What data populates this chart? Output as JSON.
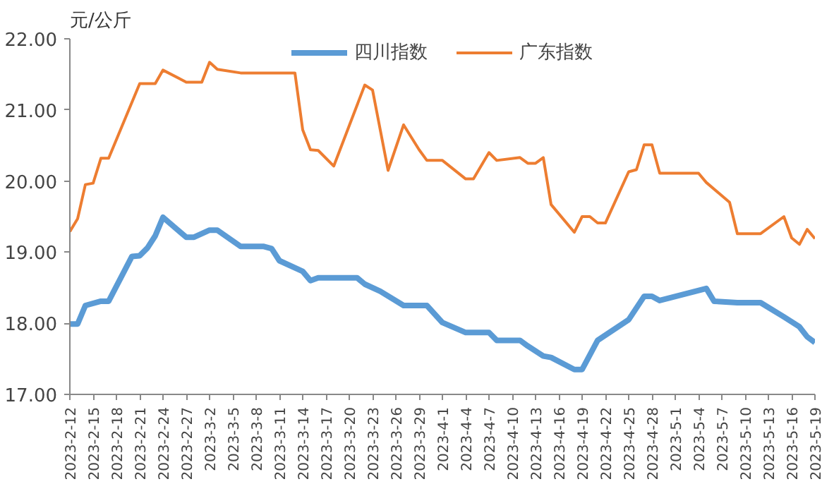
{
  "chart_data": {
    "type": "line",
    "ylabel": "元/公斤",
    "ylim": [
      17,
      22
    ],
    "yticks": [
      {
        "value": 17,
        "label": "17.00"
      },
      {
        "value": 18,
        "label": "18.00"
      },
      {
        "value": 19,
        "label": "19.00"
      },
      {
        "value": 20,
        "label": "20.00"
      },
      {
        "value": 21,
        "label": "21.00"
      },
      {
        "value": 22,
        "label": "22.00"
      }
    ],
    "xlim": [
      "2023-02-12",
      "2023-05-19"
    ],
    "xticks": [
      {
        "value": "2023-02-12",
        "label": "2023-2-12"
      },
      {
        "value": "2023-02-15",
        "label": "2023-2-15"
      },
      {
        "value": "2023-02-18",
        "label": "2023-2-18"
      },
      {
        "value": "2023-02-21",
        "label": "2023-2-21"
      },
      {
        "value": "2023-02-24",
        "label": "2023-2-24"
      },
      {
        "value": "2023-02-27",
        "label": "2023-2-27"
      },
      {
        "value": "2023-03-02",
        "label": "2023-3-2"
      },
      {
        "value": "2023-03-05",
        "label": "2023-3-5"
      },
      {
        "value": "2023-03-08",
        "label": "2023-3-8"
      },
      {
        "value": "2023-03-11",
        "label": "2023-3-11"
      },
      {
        "value": "2023-03-14",
        "label": "2023-3-14"
      },
      {
        "value": "2023-03-17",
        "label": "2023-3-17"
      },
      {
        "value": "2023-03-20",
        "label": "2023-3-20"
      },
      {
        "value": "2023-03-23",
        "label": "2023-3-23"
      },
      {
        "value": "2023-03-26",
        "label": "2023-3-26"
      },
      {
        "value": "2023-03-29",
        "label": "2023-3-29"
      },
      {
        "value": "2023-04-01",
        "label": "2023-4-1"
      },
      {
        "value": "2023-04-04",
        "label": "2023-4-4"
      },
      {
        "value": "2023-04-07",
        "label": "2023-4-7"
      },
      {
        "value": "2023-04-10",
        "label": "2023-4-10"
      },
      {
        "value": "2023-04-13",
        "label": "2023-4-13"
      },
      {
        "value": "2023-04-16",
        "label": "2023-4-16"
      },
      {
        "value": "2023-04-19",
        "label": "2023-4-19"
      },
      {
        "value": "2023-04-22",
        "label": "2023-4-22"
      },
      {
        "value": "2023-04-25",
        "label": "2023-4-25"
      },
      {
        "value": "2023-04-28",
        "label": "2023-4-28"
      },
      {
        "value": "2023-05-01",
        "label": "2023-5-1"
      },
      {
        "value": "2023-05-04",
        "label": "2023-5-4"
      },
      {
        "value": "2023-05-07",
        "label": "2023-5-7"
      },
      {
        "value": "2023-05-10",
        "label": "2023-5-10"
      },
      {
        "value": "2023-05-13",
        "label": "2023-5-13"
      },
      {
        "value": "2023-05-16",
        "label": "2023-5-16"
      },
      {
        "value": "2023-05-19",
        "label": "2023-5-19"
      }
    ],
    "grid": false,
    "legend": "top",
    "marker": "none",
    "line_style": "solid",
    "series": [
      {
        "name": "四川指数",
        "color": "#5b9bd5",
        "x": [
          "2023-02-12",
          "2023-02-13",
          "2023-02-14",
          "2023-02-16",
          "2023-02-17",
          "2023-02-20",
          "2023-02-21",
          "2023-02-22",
          "2023-02-23",
          "2023-02-24",
          "2023-02-27",
          "2023-02-28",
          "2023-03-02",
          "2023-03-03",
          "2023-03-06",
          "2023-03-09",
          "2023-03-10",
          "2023-03-11",
          "2023-03-14",
          "2023-03-15",
          "2023-03-16",
          "2023-03-21",
          "2023-03-22",
          "2023-03-24",
          "2023-03-27",
          "2023-03-30",
          "2023-04-01",
          "2023-04-04",
          "2023-04-07",
          "2023-04-08",
          "2023-04-11",
          "2023-04-12",
          "2023-04-14",
          "2023-04-15",
          "2023-04-18",
          "2023-04-19",
          "2023-04-21",
          "2023-04-25",
          "2023-04-27",
          "2023-04-28",
          "2023-04-29",
          "2023-05-05",
          "2023-05-06",
          "2023-05-09",
          "2023-05-12",
          "2023-05-15",
          "2023-05-17",
          "2023-05-18",
          "2023-05-19"
        ],
        "values": [
          17.99,
          17.99,
          18.25,
          18.31,
          18.31,
          18.94,
          18.95,
          19.06,
          19.23,
          19.49,
          19.21,
          19.21,
          19.31,
          19.31,
          19.08,
          19.08,
          19.05,
          18.88,
          18.73,
          18.6,
          18.64,
          18.64,
          18.55,
          18.45,
          18.25,
          18.25,
          18.01,
          17.87,
          17.87,
          17.76,
          17.76,
          17.68,
          17.54,
          17.52,
          17.35,
          17.35,
          17.76,
          18.05,
          18.38,
          18.38,
          18.32,
          18.49,
          18.31,
          18.29,
          18.29,
          18.09,
          17.95,
          17.81,
          17.73
        ]
      },
      {
        "name": "广东指数",
        "color": "#ed7d31",
        "x": [
          "2023-02-12",
          "2023-02-13",
          "2023-02-14",
          "2023-02-15",
          "2023-02-16",
          "2023-02-17",
          "2023-02-21",
          "2023-02-23",
          "2023-02-24",
          "2023-02-27",
          "2023-03-01",
          "2023-03-02",
          "2023-03-03",
          "2023-03-06",
          "2023-03-13",
          "2023-03-14",
          "2023-03-15",
          "2023-03-16",
          "2023-03-18",
          "2023-03-20",
          "2023-03-22",
          "2023-03-23",
          "2023-03-25",
          "2023-03-27",
          "2023-03-29",
          "2023-03-30",
          "2023-04-01",
          "2023-04-04",
          "2023-04-05",
          "2023-04-07",
          "2023-04-08",
          "2023-04-11",
          "2023-04-12",
          "2023-04-13",
          "2023-04-14",
          "2023-04-15",
          "2023-04-18",
          "2023-04-19",
          "2023-04-20",
          "2023-04-21",
          "2023-04-22",
          "2023-04-25",
          "2023-04-26",
          "2023-04-27",
          "2023-04-28",
          "2023-04-29",
          "2023-05-04",
          "2023-05-05",
          "2023-05-08",
          "2023-05-09",
          "2023-05-12",
          "2023-05-15",
          "2023-05-16",
          "2023-05-17",
          "2023-05-18",
          "2023-05-19"
        ],
        "values": [
          19.29,
          19.47,
          19.95,
          19.97,
          20.32,
          20.32,
          21.37,
          21.37,
          21.56,
          21.39,
          21.39,
          21.67,
          21.57,
          21.52,
          21.52,
          20.72,
          20.44,
          20.43,
          20.21,
          20.78,
          21.35,
          21.28,
          20.15,
          20.79,
          20.44,
          20.29,
          20.29,
          20.03,
          20.03,
          20.4,
          20.29,
          20.33,
          20.25,
          20.25,
          20.33,
          19.67,
          19.28,
          19.5,
          19.5,
          19.41,
          19.41,
          20.13,
          20.16,
          20.51,
          20.51,
          20.11,
          20.11,
          19.98,
          19.7,
          19.26,
          19.26,
          19.5,
          19.2,
          19.11,
          19.32,
          19.19
        ]
      }
    ]
  }
}
